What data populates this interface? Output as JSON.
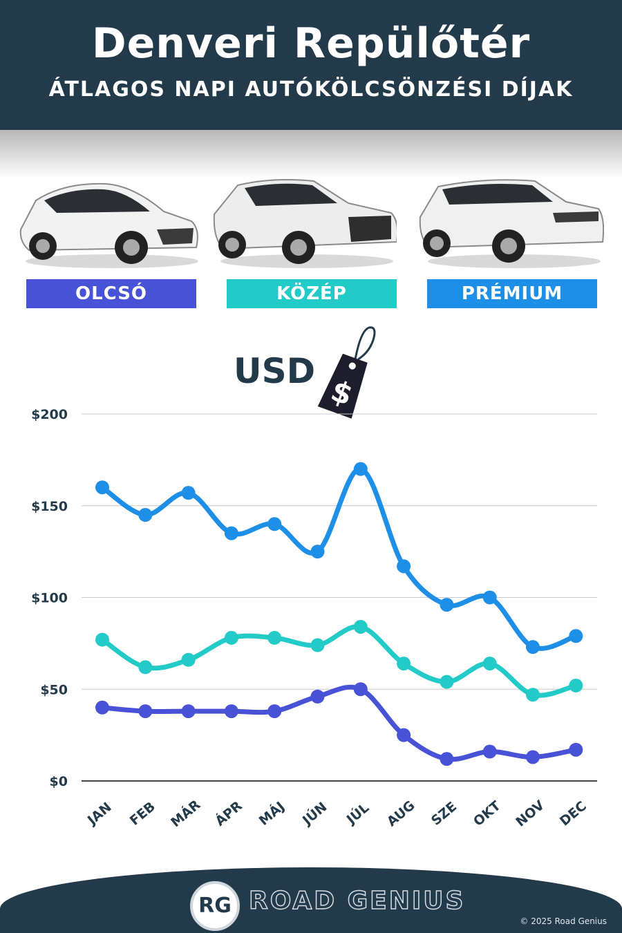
{
  "header": {
    "title": "Denveri Repülőtér",
    "subtitle": "ÁTLAGOS NAPI AUTÓKÖLCSÖNZÉSI DÍJAK"
  },
  "categories": [
    {
      "label": "OLCSÓ",
      "color": "#4752d6",
      "icon": "hatchback-car-icon"
    },
    {
      "label": "KÖZÉP",
      "color": "#22cbc8",
      "icon": "suv-car-icon"
    },
    {
      "label": "PRÉMIUM",
      "color": "#1e8fe6",
      "icon": "luxury-suv-car-icon"
    }
  ],
  "currency": {
    "label": "USD",
    "symbol": "$",
    "icon": "price-tag-icon"
  },
  "chart_data": {
    "type": "line",
    "categories": [
      "JAN",
      "FEB",
      "MÁR",
      "ÁPR",
      "MÁJ",
      "JÚN",
      "JÚL",
      "AUG",
      "SZE",
      "OKT",
      "NOV",
      "DEC"
    ],
    "series": [
      {
        "name": "PRÉMIUM",
        "color": "#1e8fe6",
        "values": [
          160,
          145,
          157,
          135,
          140,
          125,
          170,
          117,
          96,
          100,
          73,
          79
        ]
      },
      {
        "name": "KÖZÉP",
        "color": "#22cbc8",
        "values": [
          77,
          62,
          66,
          78,
          78,
          74,
          84,
          64,
          54,
          64,
          47,
          52
        ]
      },
      {
        "name": "OLCSÓ",
        "color": "#4752d6",
        "values": [
          40,
          38,
          38,
          38,
          38,
          46,
          50,
          25,
          12,
          16,
          13,
          17
        ]
      }
    ],
    "yticks": [
      "$0",
      "$50",
      "$100",
      "$150",
      "$200"
    ],
    "ylim": [
      0,
      200
    ],
    "grid": true
  },
  "footer": {
    "logo": "RG",
    "brand": "ROAD GENIUS",
    "copyright": "© 2025 Road Genius"
  }
}
